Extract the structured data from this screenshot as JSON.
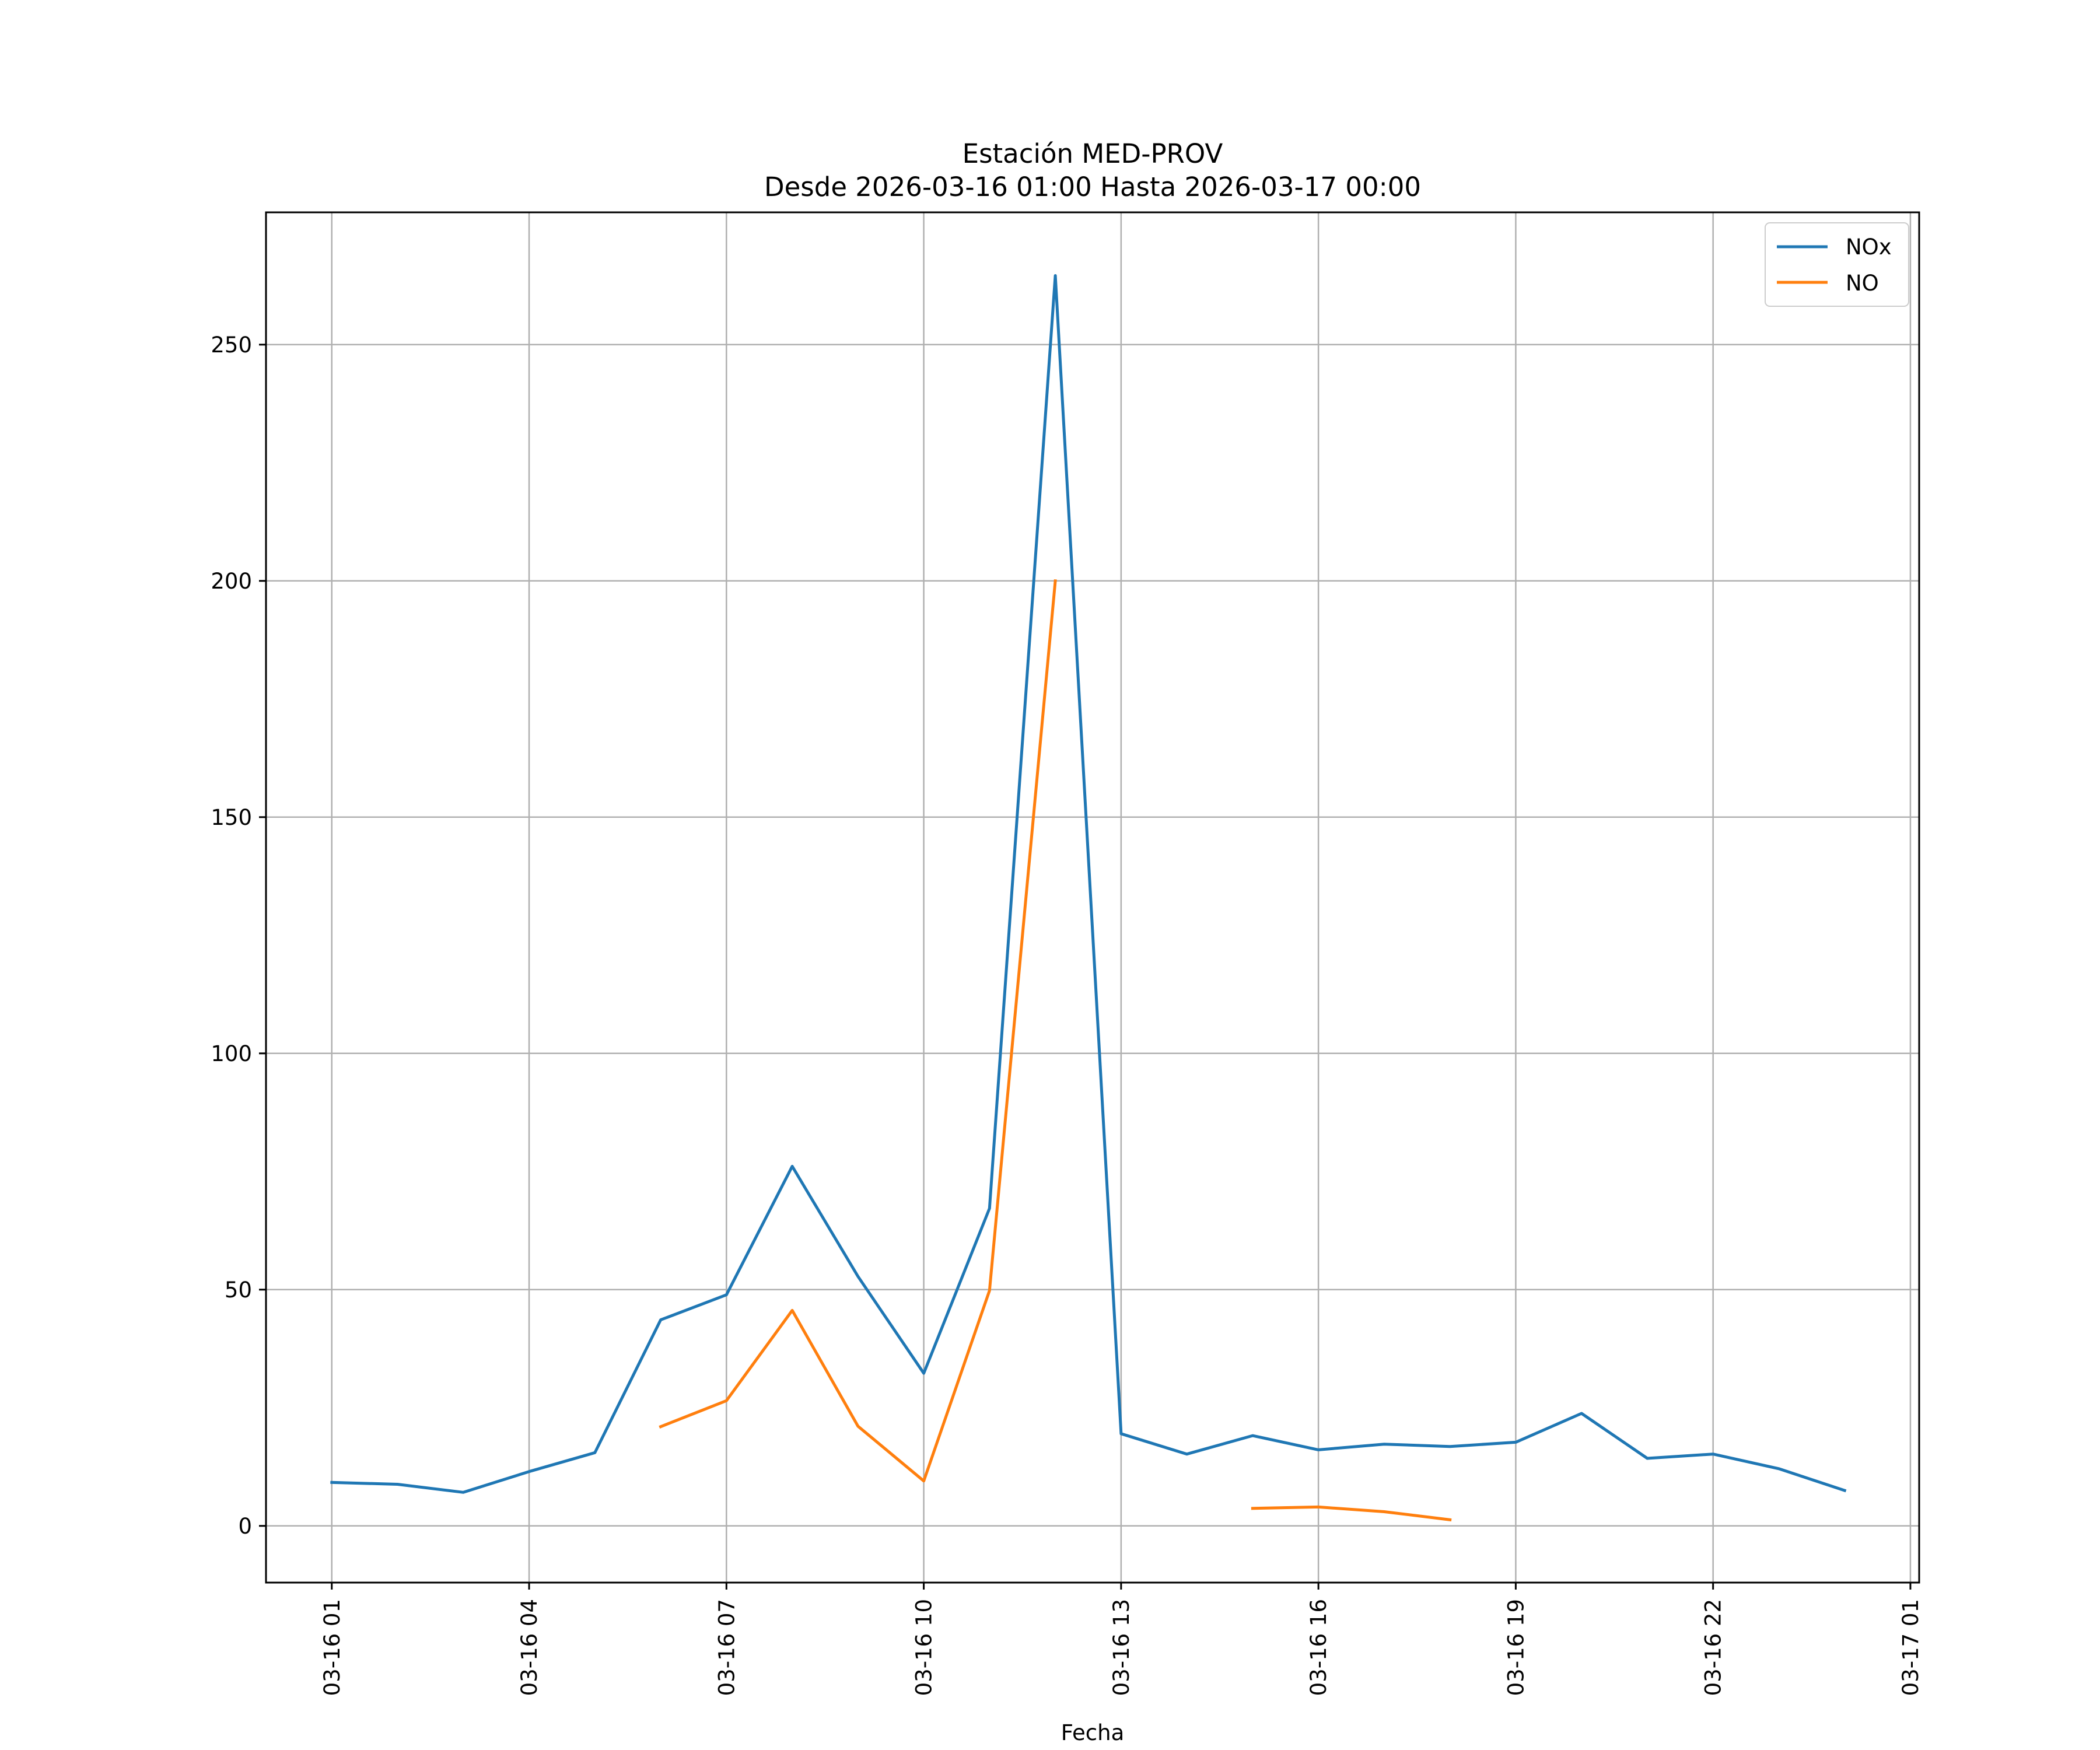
{
  "chart_data": {
    "type": "line",
    "title": "Estación MED-PROV",
    "subtitle": "Desde 2026-03-16 01:00 Hasta 2026-03-17 00:00",
    "xlabel": "Fecha",
    "ylabel": "",
    "x": [
      "2026-03-16 01:00",
      "2026-03-16 02:00",
      "2026-03-16 03:00",
      "2026-03-16 04:00",
      "2026-03-16 05:00",
      "2026-03-16 06:00",
      "2026-03-16 07:00",
      "2026-03-16 08:00",
      "2026-03-16 09:00",
      "2026-03-16 10:00",
      "2026-03-16 11:00",
      "2026-03-16 12:00",
      "2026-03-16 13:00",
      "2026-03-16 14:00",
      "2026-03-16 15:00",
      "2026-03-16 16:00",
      "2026-03-16 17:00",
      "2026-03-16 18:00",
      "2026-03-16 19:00",
      "2026-03-16 20:00",
      "2026-03-16 21:00",
      "2026-03-16 22:00",
      "2026-03-16 23:00",
      "2026-03-17 00:00"
    ],
    "series": [
      {
        "name": "NOx",
        "color": "#1f77b4",
        "values": [
          9.2,
          8.8,
          7.1,
          11.5,
          15.5,
          43.6,
          48.9,
          76.1,
          52.8,
          32.3,
          67.2,
          264.6,
          19.5,
          15.2,
          19.1,
          16.1,
          17.3,
          16.8,
          17.7,
          23.8,
          14.3,
          15.2,
          12.1,
          7.5
        ]
      },
      {
        "name": "NO",
        "color": "#ff7f0e",
        "values": [
          null,
          null,
          null,
          null,
          null,
          21.0,
          26.5,
          45.6,
          21.1,
          9.5,
          49.8,
          200.0,
          null,
          null,
          3.7,
          4.0,
          3.0,
          1.3,
          null,
          null,
          null,
          null,
          null,
          null
        ]
      }
    ],
    "ylim": [
      -12,
      278
    ],
    "yticks": [
      0,
      50,
      100,
      150,
      200,
      250
    ],
    "xlim": [
      "2026-03-16 00:00",
      "2026-03-17 01:08"
    ],
    "xticks": [
      {
        "value": "2026-03-16 01:00",
        "label": "03-16 01"
      },
      {
        "value": "2026-03-16 04:00",
        "label": "03-16 04"
      },
      {
        "value": "2026-03-16 07:00",
        "label": "03-16 07"
      },
      {
        "value": "2026-03-16 10:00",
        "label": "03-16 10"
      },
      {
        "value": "2026-03-16 13:00",
        "label": "03-16 13"
      },
      {
        "value": "2026-03-16 16:00",
        "label": "03-16 16"
      },
      {
        "value": "2026-03-16 19:00",
        "label": "03-16 19"
      },
      {
        "value": "2026-03-16 22:00",
        "label": "03-16 22"
      },
      {
        "value": "2026-03-17 01:00",
        "label": "03-17 01"
      }
    ],
    "grid": true,
    "legend_position": "top-right"
  }
}
